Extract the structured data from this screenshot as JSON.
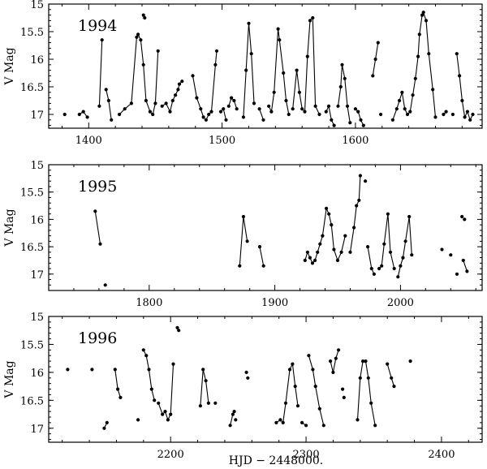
{
  "chart_data": {
    "type": "scatter",
    "xlabel": "HJD − 2448000.",
    "ylabel": "V Mag",
    "marker_color": "#000000",
    "panels": [
      {
        "label": "1994",
        "xlim": [
          1370,
          1695
        ],
        "ylim": [
          17.25,
          15.0
        ],
        "xticks": [
          1400,
          1500,
          1600
        ],
        "yticks": [
          15,
          15.5,
          16,
          16.5,
          17
        ],
        "segments": [
          [
            [
              1393,
              17.0
            ],
            [
              1396,
              16.95
            ],
            [
              1399,
              17.05
            ]
          ],
          [
            [
              1408,
              16.85
            ],
            [
              1410,
              15.65
            ]
          ],
          [
            [
              1413,
              16.55
            ],
            [
              1415,
              16.75
            ],
            [
              1417,
              17.1
            ]
          ],
          [
            [
              1423,
              17.0
            ],
            [
              1427,
              16.9
            ],
            [
              1432,
              16.8
            ],
            [
              1436,
              15.6
            ],
            [
              1437,
              15.55
            ],
            [
              1439,
              15.65
            ],
            [
              1441,
              16.1
            ],
            [
              1443,
              16.75
            ],
            [
              1446,
              16.95
            ],
            [
              1448,
              17.0
            ],
            [
              1450,
              16.8
            ],
            [
              1452,
              15.85
            ]
          ],
          [
            [
              1455,
              16.85
            ],
            [
              1458,
              16.8
            ],
            [
              1461,
              16.95
            ],
            [
              1463,
              16.75
            ],
            [
              1465,
              16.65
            ],
            [
              1467,
              16.55
            ],
            [
              1468,
              16.45
            ],
            [
              1470,
              16.4
            ]
          ],
          [
            [
              1478,
              16.3
            ],
            [
              1481,
              16.7
            ],
            [
              1484,
              16.9
            ],
            [
              1486,
              17.05
            ],
            [
              1488,
              17.1
            ],
            [
              1490,
              17.0
            ],
            [
              1492,
              16.95
            ],
            [
              1495,
              16.1
            ],
            [
              1496,
              15.85
            ]
          ],
          [
            [
              1499,
              16.95
            ],
            [
              1501,
              16.9
            ],
            [
              1503,
              17.1
            ]
          ],
          [
            [
              1505,
              16.85
            ],
            [
              1507,
              16.7
            ],
            [
              1509,
              16.75
            ],
            [
              1511,
              16.9
            ]
          ],
          [
            [
              1516,
              17.05
            ],
            [
              1518,
              16.2
            ],
            [
              1520,
              15.35
            ],
            [
              1522,
              15.9
            ],
            [
              1524,
              16.8
            ]
          ],
          [
            [
              1528,
              16.9
            ],
            [
              1531,
              17.1
            ]
          ],
          [
            [
              1535,
              16.85
            ],
            [
              1537,
              16.95
            ],
            [
              1539,
              16.6
            ],
            [
              1542,
              15.45
            ],
            [
              1543,
              15.65
            ],
            [
              1546,
              16.25
            ],
            [
              1548,
              16.75
            ],
            [
              1550,
              17.0
            ]
          ],
          [
            [
              1553,
              16.9
            ],
            [
              1556,
              16.2
            ],
            [
              1558,
              16.6
            ],
            [
              1560,
              16.9
            ],
            [
              1562,
              16.95
            ],
            [
              1564,
              15.95
            ],
            [
              1566,
              15.3
            ],
            [
              1568,
              15.25
            ],
            [
              1570,
              16.85
            ],
            [
              1573,
              17.0
            ]
          ],
          [
            [
              1578,
              16.95
            ],
            [
              1580,
              16.85
            ],
            [
              1582,
              17.1
            ],
            [
              1584,
              17.2
            ]
          ],
          [
            [
              1587,
              16.85
            ],
            [
              1589,
              16.5
            ],
            [
              1590,
              16.1
            ],
            [
              1592,
              16.35
            ],
            [
              1594,
              16.85
            ],
            [
              1596,
              17.15
            ]
          ],
          [
            [
              1600,
              16.9
            ],
            [
              1602,
              16.95
            ],
            [
              1604,
              17.1
            ],
            [
              1606,
              17.2
            ]
          ],
          [
            [
              1613,
              16.3
            ],
            [
              1615,
              16.0
            ],
            [
              1617,
              15.7
            ]
          ],
          [
            [
              1628,
              17.1
            ],
            [
              1631,
              16.9
            ],
            [
              1633,
              16.75
            ],
            [
              1635,
              16.6
            ],
            [
              1637,
              16.9
            ],
            [
              1639,
              17.0
            ],
            [
              1641,
              16.95
            ],
            [
              1643,
              16.65
            ],
            [
              1645,
              16.35
            ],
            [
              1647,
              15.95
            ],
            [
              1648,
              15.55
            ],
            [
              1650,
              15.2
            ],
            [
              1651,
              15.15
            ],
            [
              1653,
              15.3
            ],
            [
              1655,
              15.9
            ],
            [
              1658,
              16.55
            ],
            [
              1660,
              17.05
            ]
          ],
          [
            [
              1666,
              17.0
            ],
            [
              1668,
              16.95
            ]
          ],
          [
            [
              1676,
              15.9
            ],
            [
              1678,
              16.3
            ],
            [
              1680,
              16.75
            ],
            [
              1682,
              17.05
            ],
            [
              1684,
              16.95
            ],
            [
              1686,
              17.1
            ],
            [
              1688,
              17.0
            ]
          ]
        ],
        "singles": [
          [
            1382,
            17.0
          ],
          [
            1441,
            15.2
          ],
          [
            1442,
            15.25
          ],
          [
            1673,
            17.0
          ],
          [
            1619,
            17.0
          ]
        ]
      },
      {
        "label": "1995",
        "xlim": [
          1720,
          2065
        ],
        "ylim": [
          17.3,
          15.0
        ],
        "xticks": [
          1800,
          1900,
          2000
        ],
        "yticks": [
          15,
          15.5,
          16,
          16.5,
          17
        ],
        "segments": [
          [
            [
              1757,
              15.85
            ],
            [
              1761,
              16.45
            ]
          ],
          [
            [
              1872,
              16.85
            ],
            [
              1875,
              15.95
            ],
            [
              1878,
              16.4
            ]
          ],
          [
            [
              1888,
              16.5
            ],
            [
              1891,
              16.85
            ]
          ],
          [
            [
              1924,
              16.75
            ],
            [
              1926,
              16.6
            ],
            [
              1928,
              16.7
            ],
            [
              1930,
              16.8
            ],
            [
              1932,
              16.75
            ],
            [
              1934,
              16.6
            ],
            [
              1936,
              16.45
            ],
            [
              1938,
              16.3
            ],
            [
              1941,
              15.8
            ],
            [
              1943,
              15.9
            ],
            [
              1945,
              16.1
            ],
            [
              1947,
              16.55
            ],
            [
              1950,
              16.75
            ],
            [
              1953,
              16.6
            ],
            [
              1956,
              16.3
            ]
          ],
          [
            [
              1960,
              16.6
            ],
            [
              1963,
              16.15
            ],
            [
              1965,
              15.75
            ],
            [
              1967,
              15.65
            ],
            [
              1968,
              15.2
            ]
          ],
          [
            [
              1974,
              16.5
            ],
            [
              1977,
              16.9
            ],
            [
              1979,
              17.0
            ]
          ],
          [
            [
              1983,
              16.9
            ],
            [
              1985,
              16.85
            ],
            [
              1987,
              16.45
            ],
            [
              1990,
              15.9
            ],
            [
              1992,
              16.6
            ],
            [
              1995,
              16.9
            ]
          ],
          [
            [
              1998,
              17.05
            ],
            [
              2000,
              16.85
            ],
            [
              2002,
              16.7
            ],
            [
              2004,
              16.4
            ],
            [
              2007,
              15.95
            ],
            [
              2009,
              16.65
            ]
          ],
          [
            [
              2050,
              16.75
            ],
            [
              2053,
              16.95
            ]
          ]
        ],
        "singles": [
          [
            1765,
            17.2
          ],
          [
            1972,
            15.3
          ],
          [
            2033,
            16.55
          ],
          [
            2040,
            16.65
          ],
          [
            2045,
            17.0
          ],
          [
            2049,
            15.95
          ],
          [
            2051,
            16.0
          ]
        ]
      },
      {
        "label": "1996",
        "xlim": [
          2110,
          2430
        ],
        "ylim": [
          17.25,
          15.0
        ],
        "xticks": [
          2200,
          2300,
          2400
        ],
        "yticks": [
          15,
          15.5,
          16,
          16.5,
          17
        ],
        "segments": [
          [
            [
              2151,
              17.0
            ],
            [
              2153,
              16.9
            ]
          ],
          [
            [
              2159,
              15.95
            ],
            [
              2161,
              16.3
            ],
            [
              2163,
              16.45
            ]
          ],
          [
            [
              2180,
              15.6
            ],
            [
              2182,
              15.7
            ],
            [
              2184,
              15.95
            ],
            [
              2186,
              16.3
            ],
            [
              2188,
              16.5
            ]
          ],
          [
            [
              2191,
              16.55
            ],
            [
              2194,
              16.75
            ],
            [
              2196,
              16.7
            ],
            [
              2198,
              16.85
            ],
            [
              2200,
              16.75
            ],
            [
              2202,
              15.85
            ]
          ],
          [
            [
              2222,
              16.6
            ],
            [
              2224,
              15.95
            ],
            [
              2226,
              16.15
            ],
            [
              2228,
              16.55
            ]
          ],
          [
            [
              2244,
              16.95
            ],
            [
              2246,
              16.75
            ]
          ],
          [
            [
              2278,
              16.9
            ],
            [
              2281,
              16.85
            ],
            [
              2283,
              16.9
            ],
            [
              2285,
              16.55
            ],
            [
              2288,
              15.95
            ],
            [
              2290,
              15.85
            ],
            [
              2292,
              16.25
            ],
            [
              2294,
              16.6
            ]
          ],
          [
            [
              2297,
              16.9
            ],
            [
              2300,
              16.95
            ]
          ],
          [
            [
              2302,
              15.7
            ],
            [
              2305,
              15.95
            ],
            [
              2307,
              16.25
            ],
            [
              2310,
              16.65
            ],
            [
              2313,
              16.95
            ]
          ],
          [
            [
              2318,
              15.8
            ],
            [
              2320,
              16.0
            ],
            [
              2322,
              15.75
            ],
            [
              2324,
              15.6
            ]
          ],
          [
            [
              2338,
              16.85
            ],
            [
              2340,
              16.1
            ],
            [
              2342,
              15.8
            ],
            [
              2344,
              15.8
            ],
            [
              2346,
              16.1
            ],
            [
              2348,
              16.55
            ],
            [
              2351,
              16.95
            ]
          ],
          [
            [
              2360,
              15.85
            ],
            [
              2363,
              16.1
            ],
            [
              2365,
              16.25
            ]
          ]
        ],
        "singles": [
          [
            2124,
            15.95
          ],
          [
            2142,
            15.95
          ],
          [
            2176,
            16.85
          ],
          [
            2205,
            15.2
          ],
          [
            2206,
            15.25
          ],
          [
            2233,
            16.55
          ],
          [
            2247,
            16.7
          ],
          [
            2248,
            16.85
          ],
          [
            2256,
            16.0
          ],
          [
            2257,
            16.1
          ],
          [
            2327,
            16.3
          ],
          [
            2328,
            16.45
          ],
          [
            2377,
            15.8
          ]
        ]
      }
    ]
  }
}
